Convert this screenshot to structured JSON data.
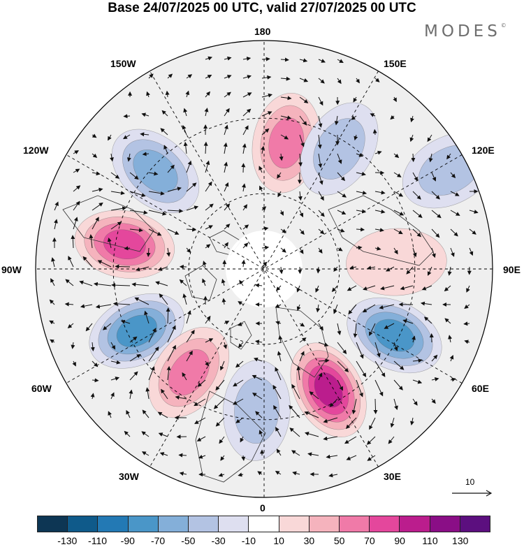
{
  "title": "Base 24/07/2025 00 UTC, valid 27/07/2025 00 UTC",
  "logo": "MODES",
  "logo_mark": "©",
  "longitude_labels": {
    "top": "180",
    "bottom": "0",
    "left": "90W",
    "right": "90E",
    "upper_left": "150W",
    "upper_right": "150E",
    "mid_upper_left": "120W",
    "mid_upper_right": "120E",
    "mid_lower_left": "60W",
    "mid_lower_right": "60E",
    "lower_left": "30W",
    "lower_right": "30E"
  },
  "vector_scale": {
    "label": "10"
  },
  "colorbar": {
    "labels": [
      "-130",
      "-110",
      "-90",
      "-70",
      "-50",
      "-30",
      "-10",
      "10",
      "30",
      "50",
      "70",
      "90",
      "110",
      "130"
    ],
    "colors": [
      "#0d3654",
      "#0f5a8a",
      "#2379b4",
      "#4a96c8",
      "#84afd9",
      "#b3c3e3",
      "#dedff0",
      "#ffffff",
      "#f9d8d8",
      "#f5b3bd",
      "#f07aa8",
      "#e4479c",
      "#bb1d8d",
      "#8a0e86",
      "#5c0f7f"
    ]
  },
  "anomaly_centers": [
    {
      "lon": 170,
      "value": 60,
      "dist": 0.56
    },
    {
      "lon": 148,
      "value": -55,
      "dist": 0.62
    },
    {
      "lon": -132,
      "value": -75,
      "dist": 0.64
    },
    {
      "lon": -100,
      "value": 90,
      "dist": 0.62
    },
    {
      "lon": -64,
      "value": -95,
      "dist": 0.62
    },
    {
      "lon": -36,
      "value": 75,
      "dist": 0.56
    },
    {
      "lon": -3,
      "value": -45,
      "dist": 0.62
    },
    {
      "lon": 28,
      "value": 105,
      "dist": 0.6
    },
    {
      "lon": 63,
      "value": -85,
      "dist": 0.64
    },
    {
      "lon": 93,
      "value": 38,
      "dist": 0.58
    },
    {
      "lon": 118,
      "value": -45,
      "dist": 0.92
    }
  ]
}
